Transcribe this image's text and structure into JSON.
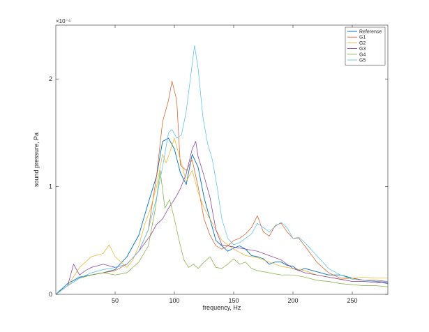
{
  "chart_data": {
    "type": "line",
    "xlabel": "frequency, Hz",
    "ylabel": "sound pressure, Pa",
    "exponent_label": "×10⁻⁴",
    "xlim": [
      0,
      280
    ],
    "ylim": [
      0,
      0.00025
    ],
    "x_ticks": [
      50,
      100,
      150,
      200,
      250
    ],
    "y_ticks": [
      0,
      0.0001,
      0.0002
    ],
    "y_tick_labels": [
      "0",
      "1",
      "2"
    ],
    "grid": false,
    "legend_position": "top-right",
    "series": [
      {
        "name": "Reference",
        "color": "#0072BD",
        "x": [
          0,
          10,
          20,
          30,
          40,
          50,
          60,
          70,
          78,
          85,
          90,
          95,
          100,
          105,
          110,
          115,
          120,
          125,
          130,
          135,
          140,
          145,
          150,
          155,
          160,
          165,
          170,
          175,
          180,
          185,
          190,
          195,
          200,
          205,
          210,
          220,
          230,
          240,
          250,
          260,
          270,
          280
        ],
        "y": [
          0,
          1e-05,
          1.6e-05,
          1.8e-05,
          2e-05,
          2.3e-05,
          3.5e-05,
          5.5e-05,
          8.5e-05,
          0.00011,
          0.000142,
          0.000145,
          0.000135,
          0.000113,
          0.000102,
          0.00013,
          0.000118,
          9e-05,
          7e-05,
          5e-05,
          4.5e-05,
          4e-05,
          4.3e-05,
          4.5e-05,
          4.2e-05,
          3.6e-05,
          3.5e-05,
          3.3e-05,
          2.8e-05,
          3e-05,
          3e-05,
          2.7e-05,
          2.6e-05,
          2.2e-05,
          2.4e-05,
          2.1e-05,
          1.8e-05,
          1.8e-05,
          1.5e-05,
          1.3e-05,
          1.2e-05,
          1e-05
        ]
      },
      {
        "name": "G1",
        "color": "#D95319",
        "x": [
          0,
          10,
          20,
          30,
          40,
          50,
          60,
          70,
          78,
          85,
          90,
          95,
          98,
          102,
          105,
          110,
          115,
          120,
          125,
          130,
          135,
          140,
          145,
          150,
          155,
          160,
          165,
          170,
          175,
          180,
          185,
          190,
          195,
          200,
          205,
          210,
          220,
          230,
          240,
          250,
          260,
          270,
          280
        ],
        "y": [
          0,
          8e-06,
          1.5e-05,
          1.8e-05,
          2e-05,
          2.2e-05,
          2.8e-05,
          4e-05,
          6e-05,
          0.00011,
          0.00016,
          0.00018,
          0.000198,
          0.00018,
          0.00012,
          0.000115,
          0.000125,
          0.0001,
          7e-05,
          5.5e-05,
          4.5e-05,
          4.2e-05,
          4.5e-05,
          5e-05,
          5.2e-05,
          5.6e-05,
          6.2e-05,
          7.3e-05,
          5.8e-05,
          5.4e-05,
          6.4e-05,
          6.6e-05,
          5.8e-05,
          5.2e-05,
          5.2e-05,
          4.5e-05,
          3e-05,
          2e-05,
          1.5e-05,
          1.5e-05,
          1.3e-05,
          1.3e-05,
          1.2e-05
        ]
      },
      {
        "name": "G2",
        "color": "#EDB120",
        "x": [
          0,
          10,
          20,
          30,
          40,
          45,
          50,
          55,
          60,
          65,
          70,
          75,
          80,
          85,
          90,
          93,
          97,
          100,
          105,
          110,
          115,
          120,
          125,
          130,
          140,
          150,
          160,
          170,
          180,
          190,
          200,
          210,
          220,
          230,
          240,
          250,
          260,
          270,
          280
        ],
        "y": [
          0,
          8e-06,
          2.5e-05,
          3.5e-05,
          3.8e-05,
          4.6e-05,
          3.5e-05,
          3e-05,
          2.5e-05,
          3.2e-05,
          4.5e-05,
          6.5e-05,
          8e-05,
          0.0001,
          0.00013,
          0.000122,
          0.000135,
          0.000145,
          0.000125,
          0.000105,
          0.000115,
          9.5e-05,
          8e-05,
          7e-05,
          5e-05,
          4.2e-05,
          3.6e-05,
          3.4e-05,
          3e-05,
          2.6e-05,
          2.4e-05,
          2.2e-05,
          1.8e-05,
          1.6e-05,
          1.4e-05,
          1.5e-05,
          1.6e-05,
          1.5e-05,
          1.5e-05
        ]
      },
      {
        "name": "G3",
        "color": "#7E2F8E",
        "x": [
          0,
          10,
          15,
          20,
          25,
          30,
          40,
          50,
          60,
          70,
          80,
          85,
          90,
          95,
          100,
          105,
          110,
          115,
          118,
          120,
          125,
          130,
          135,
          140,
          150,
          160,
          170,
          180,
          190,
          200,
          210,
          220,
          230,
          240,
          250,
          260,
          270,
          280
        ],
        "y": [
          0,
          8e-06,
          2.8e-05,
          1.8e-05,
          2.2e-05,
          2.5e-05,
          2.8e-05,
          2.5e-05,
          2.8e-05,
          4e-05,
          5.5e-05,
          6.5e-05,
          7e-05,
          8e-05,
          8.8e-05,
          9.8e-05,
          0.000112,
          0.000135,
          0.000142,
          0.000128,
          0.00011,
          9e-05,
          6e-05,
          4.6e-05,
          4.4e-05,
          4.2e-05,
          4e-05,
          3.6e-05,
          3.2e-05,
          2.4e-05,
          2e-05,
          1.8e-05,
          1.6e-05,
          1.4e-05,
          1.2e-05,
          1.2e-05,
          1.1e-05,
          1.1e-05
        ]
      },
      {
        "name": "G4",
        "color": "#77AC30",
        "x": [
          0,
          10,
          20,
          30,
          40,
          50,
          60,
          70,
          78,
          84,
          88,
          92,
          96,
          100,
          104,
          108,
          112,
          116,
          120,
          125,
          130,
          135,
          140,
          145,
          150,
          155,
          160,
          165,
          170,
          180,
          190,
          200,
          210,
          220,
          230,
          240,
          250,
          260,
          270,
          280
        ],
        "y": [
          0,
          8e-06,
          1.5e-05,
          1.8e-05,
          2e-05,
          1.8e-05,
          2e-05,
          3e-05,
          4.5e-05,
          8e-05,
          0.000115,
          8e-05,
          8.8e-05,
          7e-05,
          5e-05,
          3.2e-05,
          2.5e-05,
          2.8e-05,
          2.4e-05,
          3e-05,
          3.5e-05,
          2.5e-05,
          2.4e-05,
          2.8e-05,
          3.3e-05,
          2.8e-05,
          3e-05,
          2.4e-05,
          2.2e-05,
          2e-05,
          1.8e-05,
          1.8e-05,
          1.6e-05,
          1.3e-05,
          1.2e-05,
          1e-05,
          9e-06,
          8e-06,
          8e-06,
          7e-06
        ]
      },
      {
        "name": "G5",
        "color": "#4DBEEE",
        "x": [
          0,
          10,
          20,
          30,
          40,
          50,
          60,
          70,
          78,
          85,
          90,
          95,
          98,
          102,
          106,
          110,
          114,
          117,
          120,
          124,
          128,
          132,
          136,
          140,
          145,
          150,
          155,
          160,
          165,
          170,
          175,
          180,
          185,
          190,
          195,
          200,
          205,
          210,
          220,
          230,
          240,
          250,
          260,
          270,
          280
        ],
        "y": [
          0,
          8e-06,
          1.5e-05,
          2e-05,
          2.3e-05,
          2.5e-05,
          2.8e-05,
          4e-05,
          6e-05,
          9e-05,
          0.000118,
          0.00015,
          0.000153,
          0.000145,
          0.000148,
          0.00017,
          0.000205,
          0.000231,
          0.00021,
          0.000165,
          0.00014,
          0.000125,
          0.0001,
          7e-05,
          5.2e-05,
          4.6e-05,
          4.8e-05,
          5.2e-05,
          5.6e-05,
          6.6e-05,
          6.2e-05,
          5.8e-05,
          6.3e-05,
          6.7e-05,
          6.2e-05,
          5.2e-05,
          5.3e-05,
          4.8e-05,
          3.6e-05,
          2.4e-05,
          1.8e-05,
          1.4e-05,
          1.3e-05,
          1.2e-05,
          1.2e-05
        ]
      }
    ]
  }
}
